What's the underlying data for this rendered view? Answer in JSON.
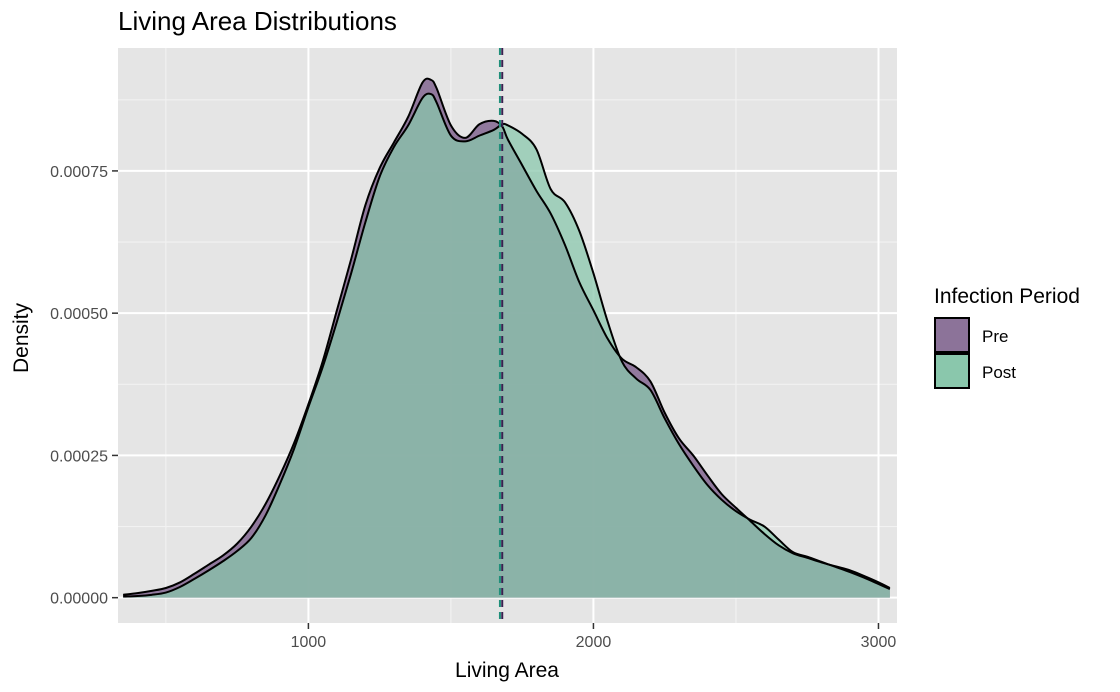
{
  "chart_data": {
    "type": "area",
    "title": "Living Area Distributions",
    "xlabel": "Living Area",
    "ylabel": "Density",
    "xlim": [
      332,
      3065
    ],
    "ylim": [
      -4.45e-05,
      0.000966
    ],
    "x_ticks": [
      1000,
      2000,
      3000
    ],
    "x_tick_labels": [
      "1000",
      "2000",
      "3000"
    ],
    "x_minor_ticks": [
      500,
      1500,
      2500
    ],
    "y_ticks": [
      0,
      0.00025,
      0.0005,
      0.00075
    ],
    "y_tick_labels": [
      "0.00000",
      "0.00025",
      "0.00050",
      "0.00075"
    ],
    "y_minor_ticks": [
      0.000125,
      0.000375,
      0.000625,
      0.000875
    ],
    "grid": true,
    "legend": {
      "title": "Infection Period",
      "position": "right"
    },
    "series": [
      {
        "name": "Pre",
        "color": "#46185f",
        "fill": "#8c7399",
        "mean": 1680,
        "x": [
          350,
          400,
          450,
          500,
          550,
          600,
          650,
          700,
          750,
          800,
          850,
          900,
          950,
          1000,
          1050,
          1100,
          1150,
          1200,
          1250,
          1300,
          1350,
          1400,
          1430,
          1450,
          1500,
          1550,
          1600,
          1650,
          1680,
          1700,
          1750,
          1800,
          1850,
          1900,
          1950,
          2000,
          2050,
          2100,
          2150,
          2200,
          2250,
          2300,
          2350,
          2400,
          2450,
          2500,
          2550,
          2600,
          2650,
          2700,
          2750,
          2800,
          2850,
          2900,
          2950,
          3000,
          3040
        ],
        "values": [
          5e-06,
          8e-06,
          1.2e-05,
          1.7e-05,
          2.7e-05,
          4.2e-05,
          5.8e-05,
          7.4e-05,
          9.5e-05,
          0.000125,
          0.000165,
          0.000215,
          0.000272,
          0.00034,
          0.000415,
          0.000505,
          0.000595,
          0.00069,
          0.000755,
          0.0008,
          0.000845,
          0.000905,
          0.00091,
          0.000895,
          0.00083,
          0.000808,
          0.000832,
          0.000838,
          0.000828,
          0.000805,
          0.00076,
          0.000715,
          0.000675,
          0.00062,
          0.000555,
          0.000505,
          0.000455,
          0.00042,
          0.000405,
          0.00038,
          0.000325,
          0.00028,
          0.00025,
          0.000215,
          0.000182,
          0.000158,
          0.000135,
          0.000112,
          9.2e-05,
          7.8e-05,
          7e-05,
          6.2e-05,
          5.5e-05,
          4.8e-05,
          3.8e-05,
          2.7e-05,
          1.7e-05
        ]
      },
      {
        "name": "Post",
        "color": "#1e5e46",
        "fill": "#8ac7ac",
        "mean": 1672,
        "x": [
          350,
          400,
          450,
          500,
          550,
          600,
          650,
          700,
          750,
          800,
          850,
          900,
          950,
          1000,
          1050,
          1100,
          1150,
          1200,
          1250,
          1300,
          1350,
          1400,
          1430,
          1450,
          1500,
          1550,
          1600,
          1650,
          1680,
          1700,
          1750,
          1800,
          1850,
          1900,
          1950,
          2000,
          2050,
          2100,
          2150,
          2200,
          2250,
          2300,
          2350,
          2400,
          2450,
          2500,
          2550,
          2600,
          2650,
          2700,
          2750,
          2800,
          2850,
          2900,
          2950,
          3000,
          3040
        ],
        "values": [
          2e-06,
          3e-06,
          5e-06,
          9e-06,
          1.9e-05,
          3.3e-05,
          4.8e-05,
          6.4e-05,
          8.2e-05,
          0.000105,
          0.000145,
          0.0002,
          0.000262,
          0.000335,
          0.000405,
          0.000485,
          0.00057,
          0.00066,
          0.00074,
          0.000792,
          0.00083,
          0.000878,
          0.000885,
          0.00087,
          0.000812,
          0.000802,
          0.000812,
          0.000822,
          0.000832,
          0.00083,
          0.000815,
          0.000788,
          0.000718,
          0.000695,
          0.000645,
          0.00057,
          0.000485,
          0.000415,
          0.000385,
          0.000365,
          0.000315,
          0.00027,
          0.000232,
          0.000198,
          0.000172,
          0.000152,
          0.000137,
          0.000125,
          0.000102,
          8e-05,
          7.2e-05,
          6.3e-05,
          5.4e-05,
          4.5e-05,
          3.5e-05,
          2.4e-05,
          1.5e-05
        ]
      }
    ]
  }
}
